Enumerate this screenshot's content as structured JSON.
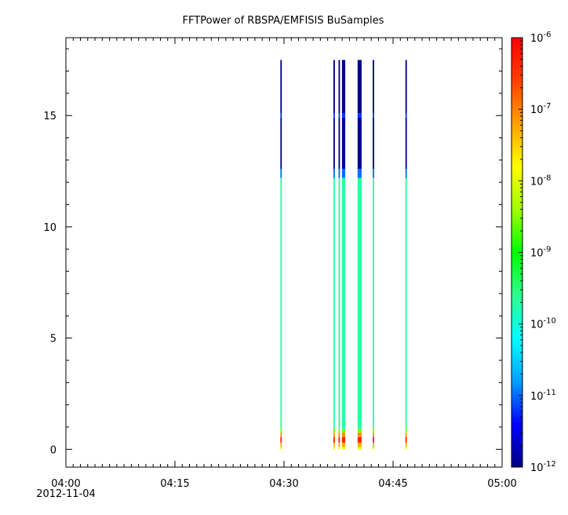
{
  "chart_data": {
    "type": "heatmap",
    "title": "FFTPower of RBSPA/EMFISIS  BuSamples",
    "xlabel": "",
    "ylabel": "",
    "x_ticks": [
      {
        "time": "04:00",
        "sub": "2012-11-04"
      },
      {
        "time": "04:15",
        "sub": ""
      },
      {
        "time": "04:30",
        "sub": ""
      },
      {
        "time": "04:45",
        "sub": ""
      },
      {
        "time": "05:00",
        "sub": ""
      }
    ],
    "x_range_minutes": [
      0,
      60
    ],
    "y_ticks": [
      0,
      5,
      10,
      15
    ],
    "y_range": [
      -0.8,
      18.5
    ],
    "colorbar": {
      "scale": "log",
      "range": [
        "1e-12",
        "1e-6"
      ],
      "tick_labels": [
        {
          "mantissa": "10",
          "exp": "-12"
        },
        {
          "mantissa": "10",
          "exp": "-11"
        },
        {
          "mantissa": "10",
          "exp": "-10"
        },
        {
          "mantissa": "10",
          "exp": "-9"
        },
        {
          "mantissa": "10",
          "exp": "-8"
        },
        {
          "mantissa": "10",
          "exp": "-7"
        },
        {
          "mantissa": "10",
          "exp": "-6"
        }
      ],
      "colors": [
        "#000080",
        "#0000ff",
        "#00a0ff",
        "#00ffff",
        "#30ff90",
        "#00ff00",
        "#a0ff00",
        "#ffff00",
        "#ffa000",
        "#ff4000",
        "#ff0000"
      ]
    },
    "spectra": [
      {
        "time": "04:29.6",
        "width_min": 0.2
      },
      {
        "time": "04:36.9",
        "width_min": 0.2
      },
      {
        "time": "04:37.6",
        "width_min": 0.2
      },
      {
        "time": "04:38.2",
        "width_min": 0.45
      },
      {
        "time": "04:40.4",
        "width_min": 0.55
      },
      {
        "time": "04:42.3",
        "width_min": 0.2
      },
      {
        "time": "04:46.8",
        "width_min": 0.2
      }
    ],
    "spectrum_profile": [
      {
        "f_low": 0.0,
        "f_high": 0.1,
        "log_power": -7.9
      },
      {
        "f_low": 0.1,
        "f_high": 0.3,
        "log_power": -7.3
      },
      {
        "f_low": 0.3,
        "f_high": 0.55,
        "log_power": -6.3
      },
      {
        "f_low": 0.55,
        "f_high": 0.75,
        "log_power": -7.1
      },
      {
        "f_low": 0.75,
        "f_high": 0.9,
        "log_power": -8.5
      },
      {
        "f_low": 0.9,
        "f_high": 12.2,
        "log_power": -9.7
      },
      {
        "f_low": 12.2,
        "f_high": 12.6,
        "log_power": -11.0
      },
      {
        "f_low": 12.6,
        "f_high": 14.9,
        "log_power": -11.9
      },
      {
        "f_low": 14.9,
        "f_high": 15.1,
        "log_power": -11.2
      },
      {
        "f_low": 15.1,
        "f_high": 17.5,
        "log_power": -11.95
      }
    ]
  }
}
